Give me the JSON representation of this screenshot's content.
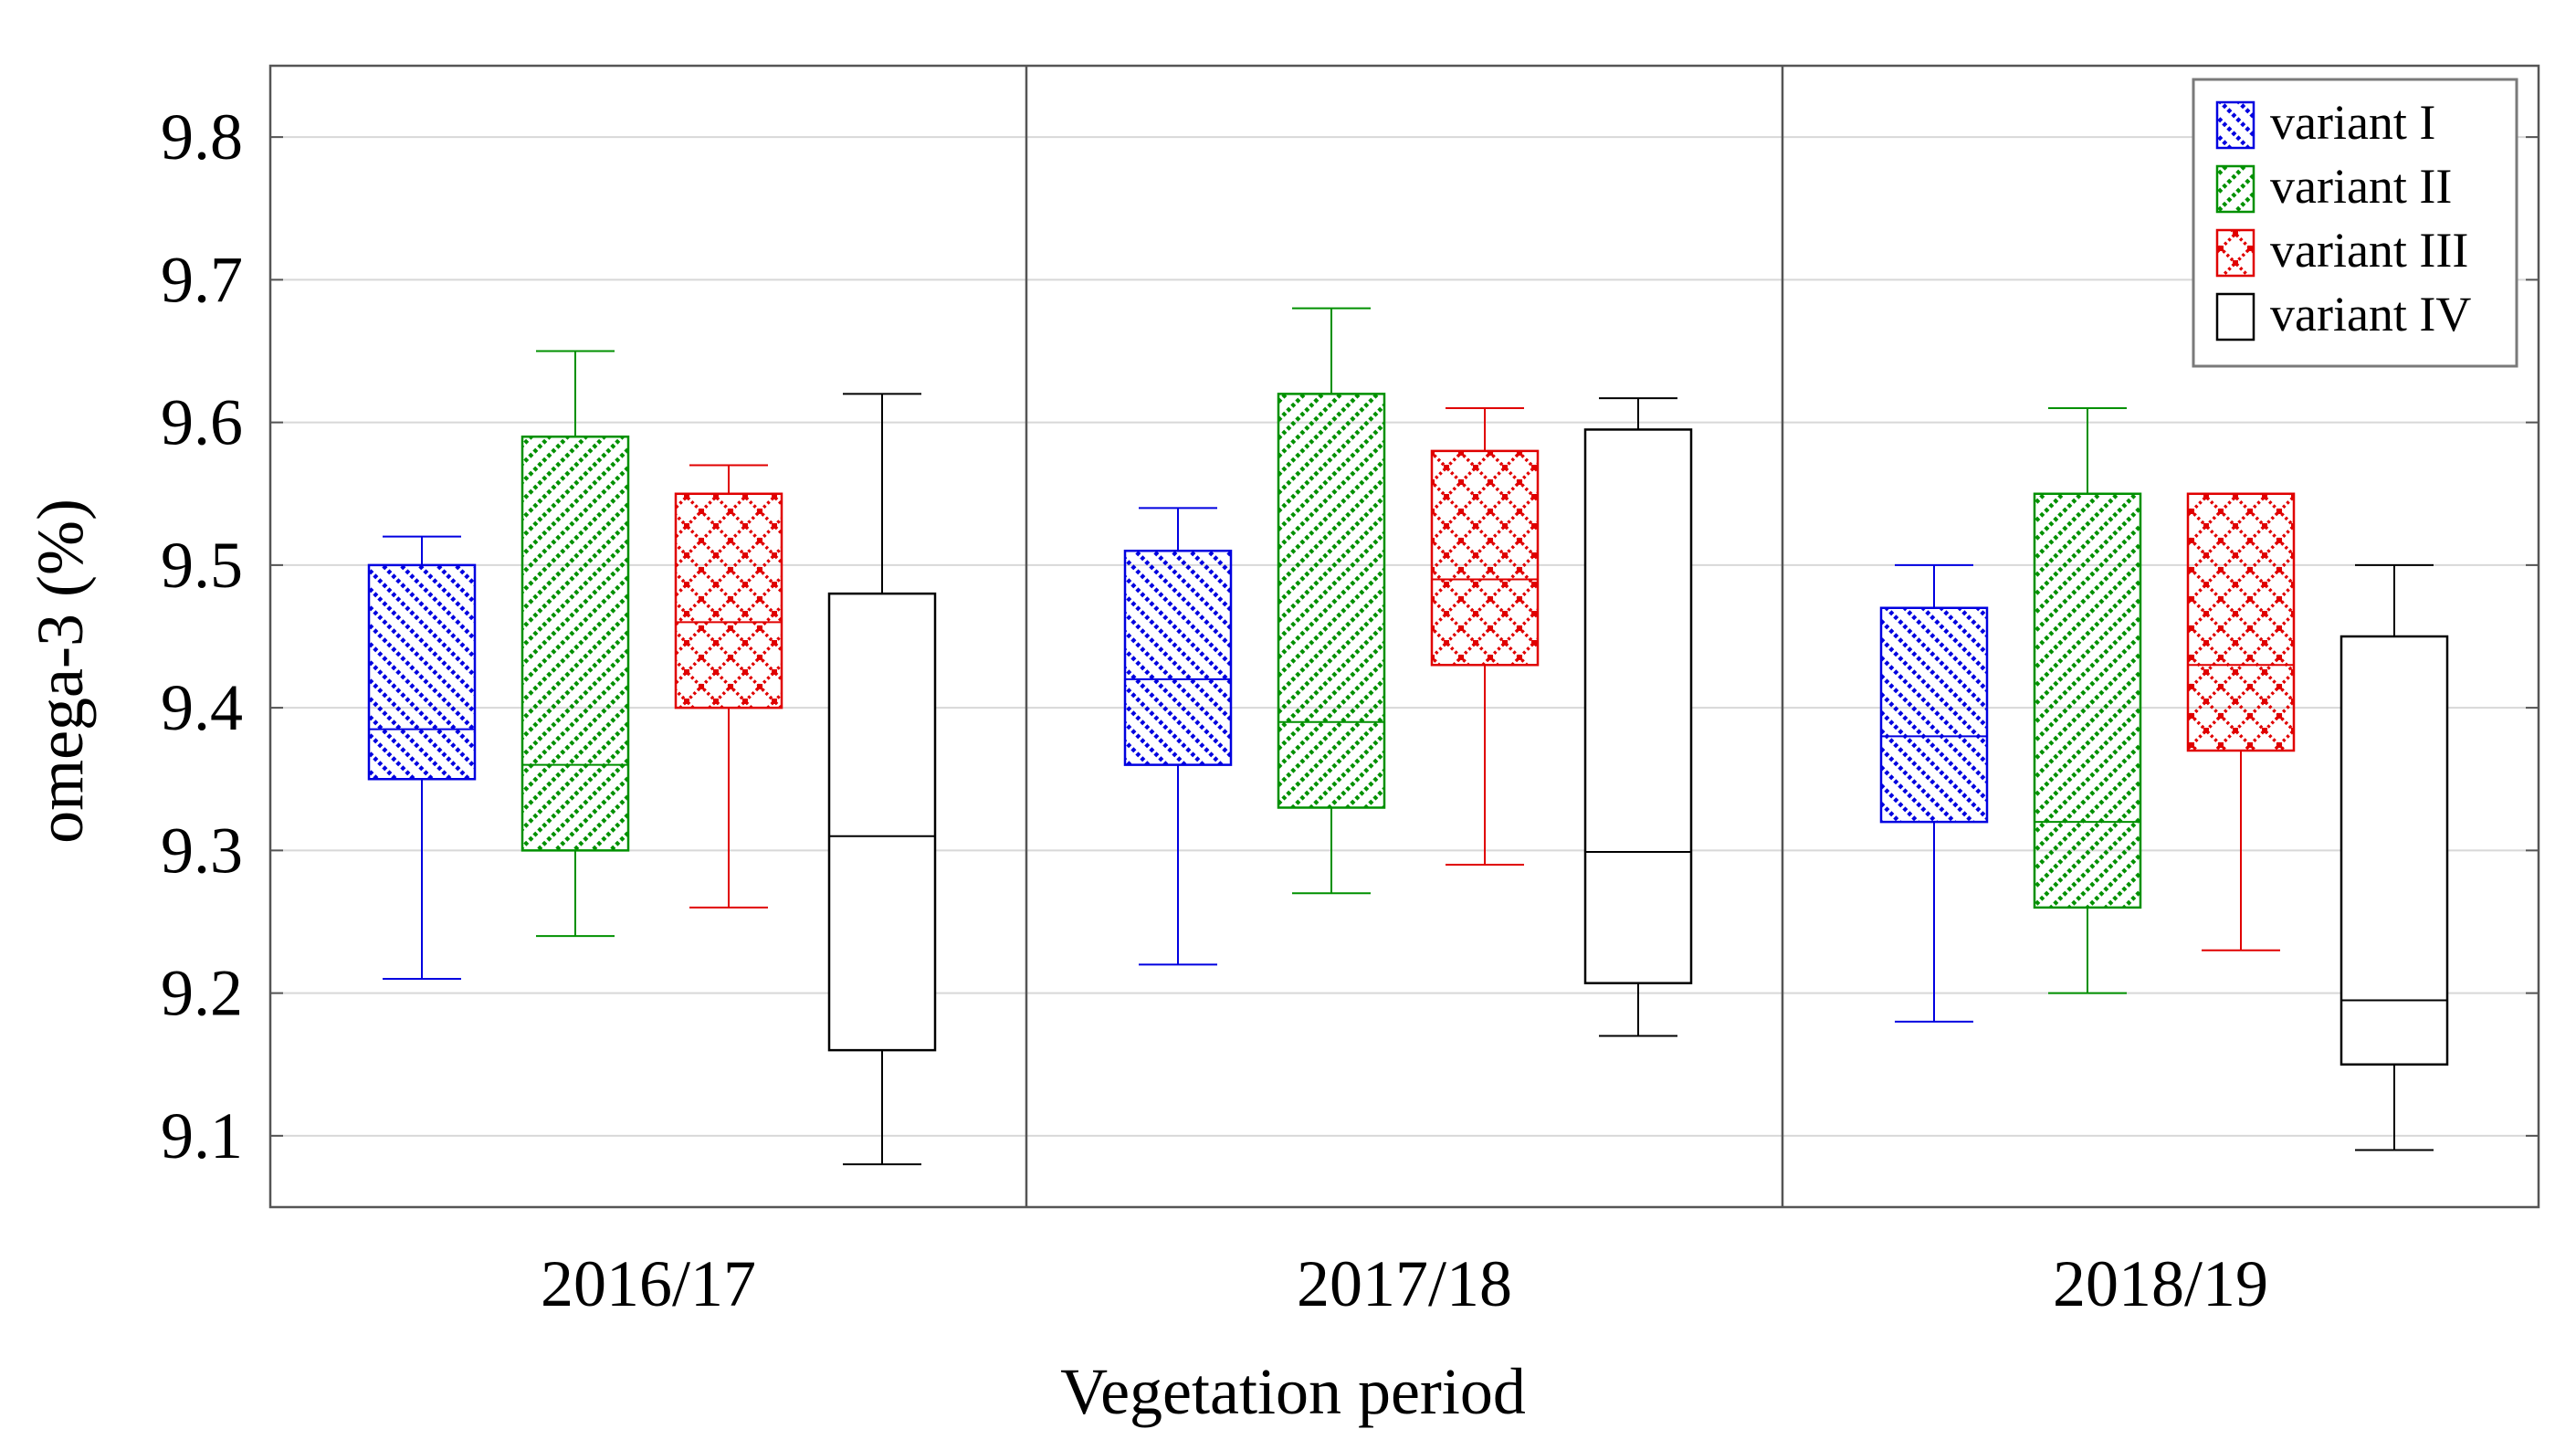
{
  "chart_data": {
    "type": "boxplot",
    "xlabel": "Vegetation period",
    "ylabel": "omega-3 (%)",
    "ylim": [
      9.05,
      9.85
    ],
    "yticks": [
      "9.1",
      "9.2",
      "9.3",
      "9.4",
      "9.5",
      "9.6",
      "9.7",
      "9.8"
    ],
    "ytick_values": [
      9.1,
      9.2,
      9.3,
      9.4,
      9.5,
      9.6,
      9.7,
      9.8
    ],
    "grid": true,
    "legend_position": "top-right",
    "categories": [
      "2016/17",
      "2017/18",
      "2018/19"
    ],
    "series": [
      {
        "name": "variant I",
        "color": "#0000e0",
        "pattern": "diag-back",
        "boxes": [
          {
            "min": 9.21,
            "q1": 9.35,
            "median": 9.385,
            "q3": 9.5,
            "max": 9.52
          },
          {
            "min": 9.22,
            "q1": 9.36,
            "median": 9.42,
            "q3": 9.51,
            "max": 9.54
          },
          {
            "min": 9.18,
            "q1": 9.32,
            "median": 9.38,
            "q3": 9.47,
            "max": 9.5
          }
        ]
      },
      {
        "name": "variant II",
        "color": "#009000",
        "pattern": "diag-fwd",
        "boxes": [
          {
            "min": 9.24,
            "q1": 9.3,
            "median": 9.36,
            "q3": 9.59,
            "max": 9.65
          },
          {
            "min": 9.27,
            "q1": 9.33,
            "median": 9.39,
            "q3": 9.62,
            "max": 9.68
          },
          {
            "min": 9.2,
            "q1": 9.26,
            "median": 9.32,
            "q3": 9.55,
            "max": 9.61
          }
        ]
      },
      {
        "name": "variant III",
        "color": "#e00000",
        "pattern": "lattice",
        "boxes": [
          {
            "min": 9.26,
            "q1": 9.4,
            "median": 9.46,
            "q3": 9.55,
            "max": 9.57
          },
          {
            "min": 9.29,
            "q1": 9.43,
            "median": 9.49,
            "q3": 9.58,
            "max": 9.61
          },
          {
            "min": 9.23,
            "q1": 9.37,
            "median": 9.43,
            "q3": 9.55,
            "max": 9.55
          }
        ]
      },
      {
        "name": "variant IV",
        "color": "#000000",
        "pattern": "none",
        "boxes": [
          {
            "min": 9.08,
            "q1": 9.16,
            "median": 9.31,
            "q3": 9.48,
            "max": 9.62
          },
          {
            "min": 9.17,
            "q1": 9.207,
            "median": 9.299,
            "q3": 9.595,
            "max": 9.617
          },
          {
            "min": 9.09,
            "q1": 9.15,
            "median": 9.195,
            "q3": 9.45,
            "max": 9.5
          }
        ]
      }
    ]
  }
}
